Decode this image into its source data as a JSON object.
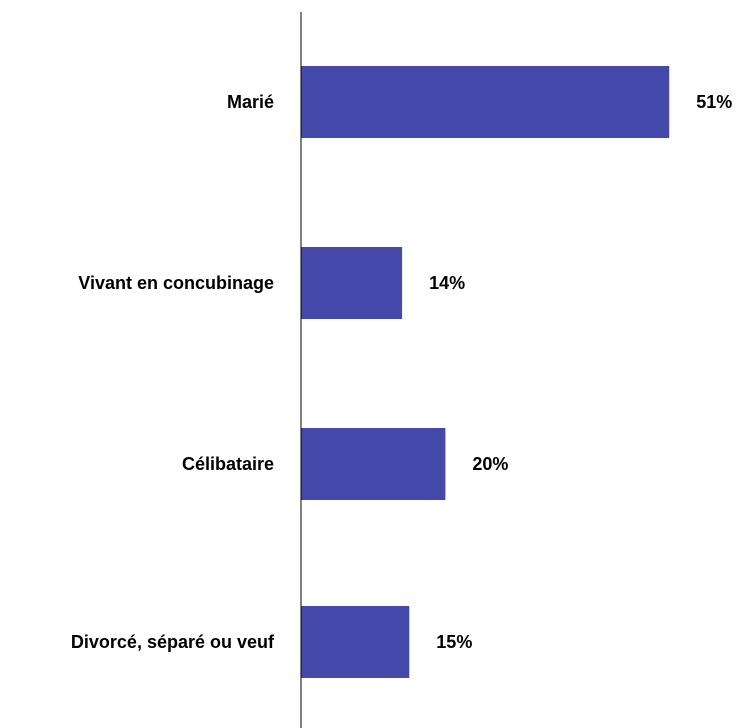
{
  "chart_data": {
    "type": "bar",
    "orientation": "horizontal",
    "categories": [
      "Marié",
      "Vivant en concubinage",
      "Célibataire",
      "Divorcé, séparé ou veuf"
    ],
    "values": [
      51,
      14,
      20,
      15
    ],
    "value_labels": [
      "51%",
      "14%",
      "20%",
      "15%"
    ],
    "title": "",
    "xlabel": "",
    "ylabel": "",
    "xlim": [
      0,
      60
    ],
    "grid": false,
    "legend": "none",
    "bar_color": "#4549AA",
    "axis_color": "#000000"
  }
}
